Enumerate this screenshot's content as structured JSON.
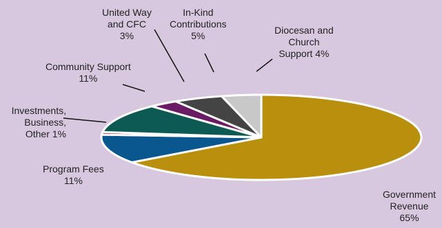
{
  "chart_data": {
    "type": "pie",
    "title": "",
    "slices": [
      {
        "label": "Government\nRevenue\n65%",
        "value": 65,
        "color": "#b8900e"
      },
      {
        "label": "Program Fees\n11%",
        "value": 11,
        "color": "#0a568e"
      },
      {
        "label": "Investments,\nBusiness,\nOther  1%",
        "value": 1,
        "color": "#a11533"
      },
      {
        "label": "Community Support\n11%",
        "value": 11,
        "color": "#0d5a54"
      },
      {
        "label": "United Way\nand CFC\n3%",
        "value": 3,
        "color": "#6b1a64"
      },
      {
        "label": "In-Kind\nContributions\n5%",
        "value": 5,
        "color": "#444444"
      },
      {
        "label": "Diocesan and\nChurch\nSupport  4%",
        "value": 4,
        "color": "#c8c8c8"
      }
    ],
    "legend": "none",
    "grid": false
  }
}
